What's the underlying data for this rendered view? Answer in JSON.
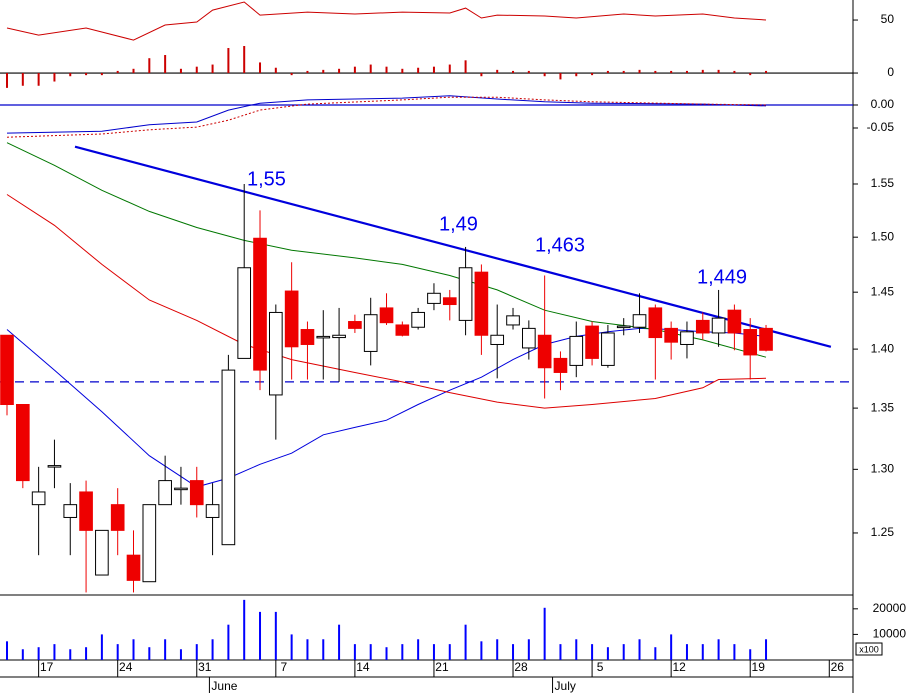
{
  "chart_data": [
    {
      "type": "line",
      "xlim": [
        -0.443,
        53.5
      ],
      "ylim": [
        -16,
        68.9
      ],
      "yticks": [
        0,
        50
      ],
      "hlines": [
        {
          "value": 0,
          "color": "#000000"
        }
      ],
      "series": [
        {
          "color": "#cc0000",
          "x": [
            0,
            2,
            5,
            8,
            10,
            12,
            13,
            15,
            16,
            19,
            22,
            25,
            28,
            29,
            30,
            31,
            34,
            36,
            39,
            41,
            44,
            46,
            48
          ],
          "values": [
            42.5,
            35.8,
            42.5,
            31.1,
            45.3,
            48.1,
            59.4,
            67,
            54.7,
            57.5,
            55.7,
            57.5,
            56.6,
            61.3,
            51.9,
            54.7,
            53.8,
            51.9,
            55.7,
            53.8,
            55.7,
            51.9,
            50
          ]
        }
      ],
      "bars": {
        "color": "#cc0000",
        "x": [
          0,
          1,
          2,
          3,
          4,
          5,
          6,
          7,
          8,
          9,
          10,
          11,
          12,
          13,
          14,
          15,
          16,
          17,
          18,
          19,
          20,
          21,
          22,
          23,
          24,
          25,
          26,
          27,
          28,
          29,
          30,
          31,
          32,
          33,
          34,
          35,
          36,
          37,
          38,
          39,
          40,
          41,
          42,
          43,
          44,
          45,
          46,
          47,
          48
        ],
        "values": [
          -14,
          -12,
          -12,
          -8,
          -3,
          -2,
          -2,
          2,
          4,
          14,
          17,
          4,
          6,
          8,
          23.6,
          25.5,
          10,
          5,
          -2,
          2,
          3,
          4,
          6,
          8,
          6,
          4,
          5,
          6,
          8,
          12,
          -3,
          3,
          2,
          2,
          -3,
          -6,
          -3,
          -2,
          2,
          2,
          3,
          2,
          2,
          2,
          3,
          3,
          2,
          -2,
          2
        ]
      }
    },
    {
      "type": "line",
      "xlim": [
        -0.443,
        53.5
      ],
      "ylim": [
        -0.0761,
        0.0326
      ],
      "yticks": [
        {
          "value": 0,
          "label": "0.00"
        },
        {
          "value": -0.05,
          "label": "-0.05"
        }
      ],
      "hlines": [
        {
          "value": 0,
          "color": "#0000cc"
        }
      ],
      "series": [
        {
          "color": "#0000cc",
          "x": [
            0,
            6,
            9,
            12,
            14,
            16,
            19,
            25,
            28,
            31,
            34,
            37,
            44,
            48
          ],
          "values": [
            -0.061,
            -0.057,
            -0.043,
            -0.037,
            -0.011,
            0.004,
            0.011,
            0.015,
            0.02,
            0.013,
            0.007,
            0.004,
            0.002,
            -0.002
          ]
        },
        {
          "color": "#cc0000",
          "dashed": true,
          "x": [
            0,
            6,
            9,
            12,
            14,
            16,
            19,
            25,
            28,
            31,
            34,
            37,
            44,
            48
          ],
          "values": [
            -0.07,
            -0.063,
            -0.054,
            -0.048,
            -0.033,
            -0.011,
            0.002,
            0.011,
            0.017,
            0.017,
            0.011,
            0.007,
            0.002,
            0
          ]
        }
      ]
    },
    {
      "type": "candlestick",
      "log_scale": true,
      "xlim": [
        -0.443,
        53.5
      ],
      "ylim": [
        1.2031,
        1.5926
      ],
      "yticks": [
        1.25,
        {
          "value": 1.3,
          "label": "1.30"
        },
        1.35,
        {
          "value": 1.4,
          "label": "1.40"
        },
        1.45,
        {
          "value": 1.5,
          "label": "1.50"
        },
        1.55
      ],
      "up_color": "#ffffff",
      "down_color": "#ee0000",
      "x": [
        0,
        1,
        2,
        3,
        4,
        5,
        6,
        7,
        8,
        9,
        10,
        11,
        12,
        13,
        14,
        15,
        16,
        17,
        18,
        19,
        20,
        21,
        22,
        23,
        24,
        25,
        26,
        27,
        28,
        29,
        30,
        31,
        32,
        33,
        34,
        35,
        36,
        37,
        38,
        39,
        40,
        41,
        42,
        43,
        44,
        45,
        46,
        47,
        48
      ],
      "open": [
        1.412,
        1.353,
        1.272,
        1.303,
        1.262,
        1.282,
        1.218,
        1.272,
        1.233,
        1.213,
        1.272,
        1.285,
        1.291,
        1.262,
        1.241,
        1.392,
        1.499,
        1.361,
        1.451,
        1.417,
        1.411,
        1.41,
        1.424,
        1.398,
        1.436,
        1.421,
        1.419,
        1.44,
        1.445,
        1.425,
        1.468,
        1.404,
        1.421,
        1.401,
        1.412,
        1.392,
        1.386,
        1.42,
        1.386,
        1.42,
        1.419,
        1.436,
        1.418,
        1.404,
        1.425,
        1.414,
        1.434,
        1.417,
        1.418
      ],
      "high": [
        1.412,
        1.353,
        1.302,
        1.324,
        1.289,
        1.291,
        1.252,
        1.285,
        1.252,
        1.272,
        1.311,
        1.302,
        1.302,
        1.289,
        1.395,
        1.55,
        1.525,
        1.439,
        1.477,
        1.424,
        1.434,
        1.436,
        1.43,
        1.445,
        1.449,
        1.424,
        1.436,
        1.458,
        1.452,
        1.491,
        1.475,
        1.439,
        1.436,
        1.425,
        1.465,
        1.398,
        1.424,
        1.424,
        1.421,
        1.427,
        1.449,
        1.439,
        1.424,
        1.424,
        1.432,
        1.452,
        1.439,
        1.427,
        1.421
      ],
      "low": [
        1.344,
        1.285,
        1.233,
        1.285,
        1.233,
        1.205,
        1.218,
        1.233,
        1.205,
        1.213,
        1.272,
        1.272,
        1.262,
        1.233,
        1.241,
        1.392,
        1.365,
        1.324,
        1.374,
        1.374,
        1.374,
        1.372,
        1.414,
        1.386,
        1.421,
        1.411,
        1.417,
        1.434,
        1.425,
        1.412,
        1.395,
        1.375,
        1.417,
        1.391,
        1.358,
        1.365,
        1.376,
        1.386,
        1.384,
        1.412,
        1.414,
        1.374,
        1.391,
        1.392,
        1.408,
        1.402,
        1.399,
        1.374,
        1.398
      ],
      "close": [
        1.353,
        1.291,
        1.282,
        1.303,
        1.272,
        1.252,
        1.252,
        1.252,
        1.214,
        1.272,
        1.291,
        1.285,
        1.272,
        1.272,
        1.382,
        1.472,
        1.382,
        1.432,
        1.402,
        1.404,
        1.411,
        1.412,
        1.418,
        1.43,
        1.423,
        1.412,
        1.432,
        1.449,
        1.439,
        1.472,
        1.412,
        1.412,
        1.429,
        1.418,
        1.384,
        1.38,
        1.411,
        1.392,
        1.414,
        1.42,
        1.43,
        1.41,
        1.406,
        1.415,
        1.414,
        1.427,
        1.414,
        1.395,
        1.399
      ],
      "lines": [
        {
          "color": "#0000dd",
          "x": [
            0,
            3,
            6,
            9,
            12,
            14,
            16,
            18,
            20,
            22,
            24,
            26,
            28,
            30,
            32,
            34,
            36,
            38,
            40,
            42,
            44,
            46,
            48
          ],
          "values": [
            1.417,
            1.382,
            1.347,
            1.311,
            1.286,
            1.293,
            1.304,
            1.313,
            1.328,
            1.334,
            1.34,
            1.353,
            1.365,
            1.376,
            1.391,
            1.404,
            1.411,
            1.415,
            1.418,
            1.417,
            1.415,
            1.414,
            1.411
          ]
        },
        {
          "color": "#007700",
          "x": [
            0,
            3,
            6,
            9,
            12,
            15,
            18,
            22,
            25,
            28,
            31,
            34,
            37,
            41,
            44,
            48
          ],
          "values": [
            1.59,
            1.568,
            1.544,
            1.524,
            1.509,
            1.497,
            1.488,
            1.481,
            1.475,
            1.465,
            1.452,
            1.434,
            1.424,
            1.417,
            1.408,
            1.393
          ]
        },
        {
          "color": "#dd0000",
          "x": [
            0,
            3,
            6,
            9,
            12,
            15,
            18,
            22,
            25,
            28,
            31,
            34,
            37,
            41,
            44,
            45,
            48
          ],
          "values": [
            1.54,
            1.511,
            1.475,
            1.443,
            1.425,
            1.404,
            1.391,
            1.38,
            1.372,
            1.363,
            1.355,
            1.35,
            1.353,
            1.358,
            1.367,
            1.374,
            1.375
          ]
        }
      ],
      "trendline": {
        "color": "#0000dd",
        "x": [
          4.3,
          52.1
        ],
        "values": [
          1.586,
          1.402
        ]
      },
      "hlines": [
        {
          "value": 1.372,
          "color": "#0000cc",
          "dashed": true
        }
      ],
      "annotations": [
        "1,55",
        "1,49",
        "1,463",
        "1,449"
      ]
    },
    {
      "type": "bar",
      "color": "#0000ff",
      "unit_label": "x100",
      "xlim": [
        -0.443,
        53.5
      ],
      "ylim": [
        0,
        25400
      ],
      "yticks": [
        10000,
        20000
      ],
      "x": [
        0,
        1,
        2,
        3,
        4,
        5,
        6,
        7,
        8,
        9,
        10,
        11,
        12,
        13,
        14,
        15,
        16,
        17,
        18,
        19,
        20,
        21,
        22,
        23,
        24,
        25,
        26,
        27,
        28,
        29,
        30,
        31,
        32,
        33,
        34,
        35,
        36,
        37,
        38,
        39,
        40,
        41,
        42,
        43,
        44,
        45,
        46,
        47,
        48
      ],
      "values": [
        7300,
        4200,
        5000,
        6200,
        4200,
        5000,
        10000,
        6200,
        8100,
        5000,
        8100,
        4200,
        6200,
        8100,
        13800,
        23500,
        18800,
        18800,
        10000,
        8100,
        8100,
        13800,
        6200,
        6200,
        5000,
        6200,
        8100,
        6200,
        6200,
        13800,
        7300,
        8100,
        6200,
        8100,
        20400,
        6200,
        8100,
        6200,
        5000,
        6200,
        8100,
        5000,
        10000,
        6200,
        6200,
        8100,
        6200,
        4200,
        8100
      ],
      "xticks": [
        {
          "value": 2,
          "label": "17"
        },
        {
          "value": 7,
          "label": "24"
        },
        {
          "value": 12,
          "label": "31"
        },
        {
          "value": 17,
          "label": "7"
        },
        {
          "value": 22,
          "label": "14"
        },
        {
          "value": 27,
          "label": "21"
        },
        {
          "value": 32,
          "label": "28"
        },
        {
          "value": 37,
          "label": "5"
        },
        {
          "value": 42,
          "label": "12"
        },
        {
          "value": 47,
          "label": "19"
        },
        {
          "value": 52,
          "label": "26"
        }
      ],
      "month_ticks": [
        {
          "value": 12.8,
          "label": "June"
        },
        {
          "value": 34.5,
          "label": "July"
        }
      ]
    }
  ]
}
